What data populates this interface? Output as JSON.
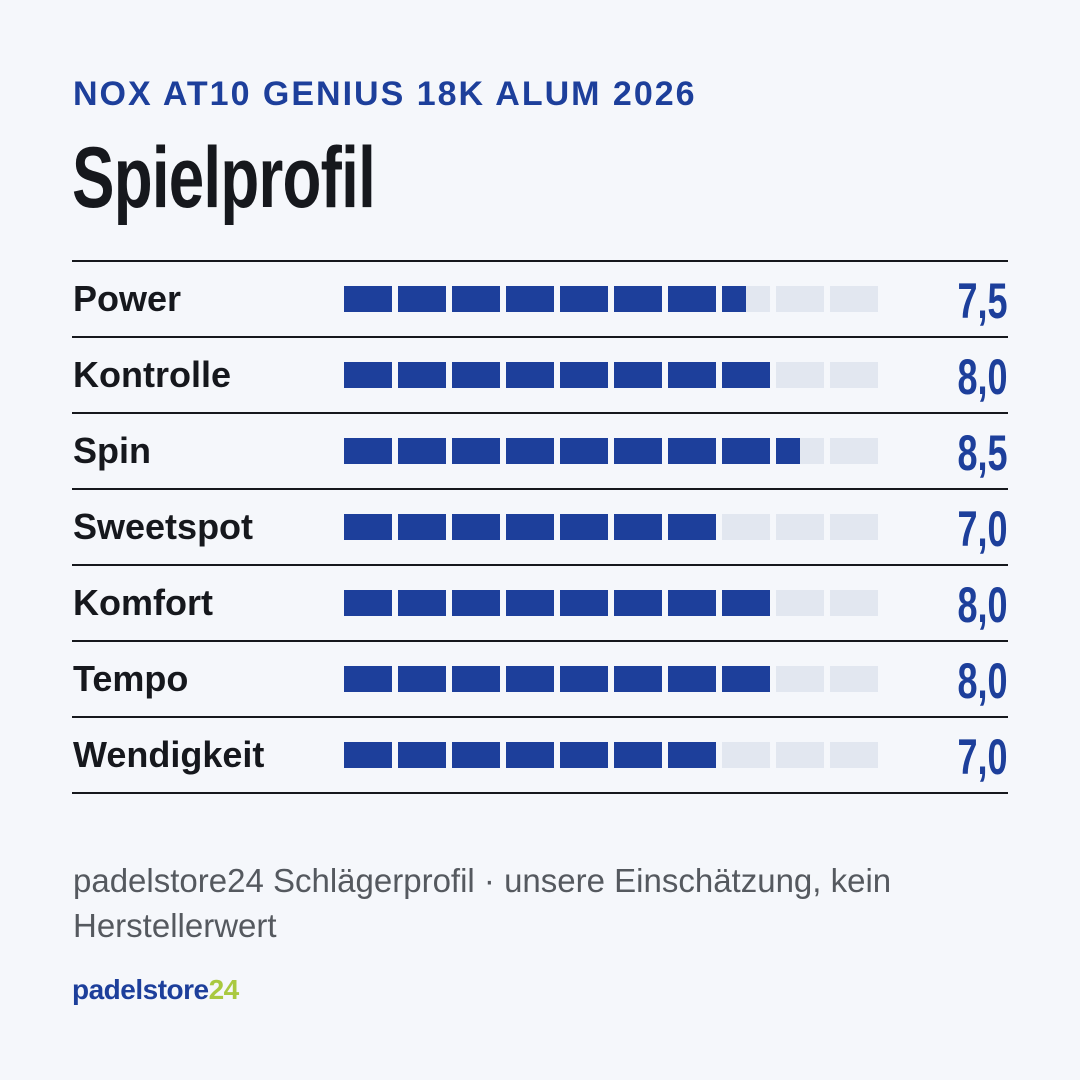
{
  "header": {
    "subtitle": "NOX AT10 GENIUS 18K ALUM 2026",
    "title": "Spielprofil"
  },
  "chart_data": {
    "type": "bar",
    "title": "Spielprofil",
    "subtitle": "NOX AT10 GENIUS 18K ALUM 2026",
    "scale_max": 10,
    "categories": [
      "Power",
      "Kontrolle",
      "Spin",
      "Sweetspot",
      "Komfort",
      "Tempo",
      "Wendigkeit"
    ],
    "values": [
      7.5,
      8.0,
      8.5,
      7.0,
      8.0,
      8.0,
      7.0
    ],
    "value_labels": [
      "7,5",
      "8,0",
      "8,5",
      "7,0",
      "8,0",
      "8,0",
      "7,0"
    ],
    "colors": {
      "filled": "#1d3f9b",
      "empty": "#e2e7f0"
    }
  },
  "footer": {
    "note": "padelstore24 Schlägerprofil · unsere Einschätzung, kein Herstellerwert",
    "logo_main": "padelstore",
    "logo_accent": "24"
  },
  "colors": {
    "accent": "#1d3f9b",
    "logo_accent": "#a9c940",
    "background": "#f5f7fb"
  }
}
